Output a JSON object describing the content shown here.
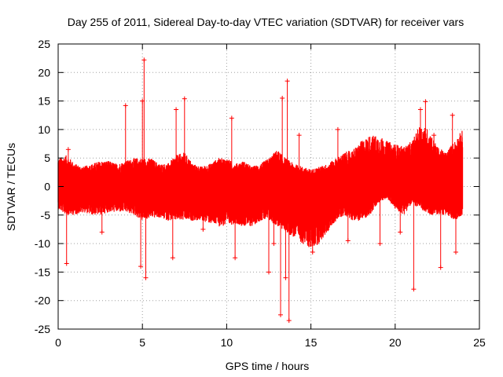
{
  "chart_data": {
    "type": "scatter",
    "title": "Day 255 of 2011, Sidereal Day-to-day VTEC variation (SDTVAR) for receiver vars",
    "xlabel": "GPS time / hours",
    "ylabel": "SDTVAR / TECUs",
    "xlim": [
      0,
      25
    ],
    "ylim": [
      -25,
      25
    ],
    "xticks": [
      0,
      5,
      10,
      15,
      20,
      25
    ],
    "yticks": [
      -25,
      -20,
      -15,
      -10,
      -5,
      0,
      5,
      10,
      15,
      20,
      25
    ],
    "grid": true,
    "series_color": "#ff0000",
    "data_extent_hours": [
      0,
      24
    ],
    "envelope": {
      "x": [
        0,
        0.5,
        1,
        1.5,
        2,
        2.5,
        3,
        3.5,
        4,
        4.5,
        5,
        5.5,
        6,
        6.5,
        7,
        7.5,
        8,
        8.5,
        9,
        9.5,
        10,
        10.5,
        11,
        11.5,
        12,
        12.5,
        13,
        13.5,
        14,
        14.5,
        15,
        15.5,
        16,
        16.5,
        17,
        17.5,
        18,
        18.5,
        19,
        19.5,
        20,
        20.5,
        21,
        21.5,
        22,
        22.5,
        23,
        23.5,
        24
      ],
      "upper": [
        5,
        5.5,
        4,
        3.5,
        4,
        4.5,
        4.5,
        4,
        4.5,
        5,
        5,
        5,
        4,
        4,
        5.5,
        6,
        4,
        3.5,
        4,
        5,
        5,
        4,
        4.5,
        3.5,
        4,
        5,
        6.5,
        5,
        4,
        3.5,
        3,
        3.5,
        4,
        5,
        6,
        6.5,
        8,
        9,
        9,
        8,
        7.5,
        7,
        8,
        11,
        10,
        7,
        6,
        8,
        10
      ],
      "lower": [
        -4,
        -5,
        -5,
        -4.5,
        -5,
        -5,
        -4.5,
        -4.5,
        -4.5,
        -5,
        -6,
        -5.5,
        -5.5,
        -6,
        -6,
        -6,
        -6,
        -6,
        -6.5,
        -7,
        -7,
        -6.5,
        -7,
        -7,
        -6,
        -6,
        -7,
        -8,
        -9,
        -10,
        -11,
        -10,
        -8,
        -6,
        -5,
        -6,
        -6,
        -5,
        -3,
        -2,
        -4,
        -5,
        -3,
        -4,
        -5,
        -5,
        -5,
        -6,
        -5
      ]
    },
    "spikes": [
      {
        "x": 0.5,
        "y": -13.5
      },
      {
        "x": 0.6,
        "y": 6.5
      },
      {
        "x": 2.6,
        "y": -8
      },
      {
        "x": 4.0,
        "y": 14.2
      },
      {
        "x": 4.9,
        "y": -14
      },
      {
        "x": 5.1,
        "y": 22.2
      },
      {
        "x": 5.2,
        "y": -16
      },
      {
        "x": 5.0,
        "y": 15
      },
      {
        "x": 6.8,
        "y": -12.5
      },
      {
        "x": 7.0,
        "y": 13.5
      },
      {
        "x": 7.5,
        "y": 15.4
      },
      {
        "x": 8.6,
        "y": -7.5
      },
      {
        "x": 10.5,
        "y": -12.5
      },
      {
        "x": 10.3,
        "y": 12
      },
      {
        "x": 12.5,
        "y": -15
      },
      {
        "x": 12.8,
        "y": -10
      },
      {
        "x": 13.2,
        "y": -22.5
      },
      {
        "x": 13.3,
        "y": 15.5
      },
      {
        "x": 13.6,
        "y": 18.5
      },
      {
        "x": 13.7,
        "y": -23.5
      },
      {
        "x": 13.5,
        "y": -16
      },
      {
        "x": 14.3,
        "y": 9
      },
      {
        "x": 15.1,
        "y": -11.5
      },
      {
        "x": 16.6,
        "y": 10
      },
      {
        "x": 17.2,
        "y": -9.5
      },
      {
        "x": 19.1,
        "y": -10
      },
      {
        "x": 20.3,
        "y": -8
      },
      {
        "x": 21.1,
        "y": -18
      },
      {
        "x": 21.5,
        "y": 13.5
      },
      {
        "x": 21.8,
        "y": 14.9
      },
      {
        "x": 22.3,
        "y": 9
      },
      {
        "x": 22.7,
        "y": -14.2
      },
      {
        "x": 23.4,
        "y": 12.5
      },
      {
        "x": 23.6,
        "y": -11.5
      }
    ]
  }
}
